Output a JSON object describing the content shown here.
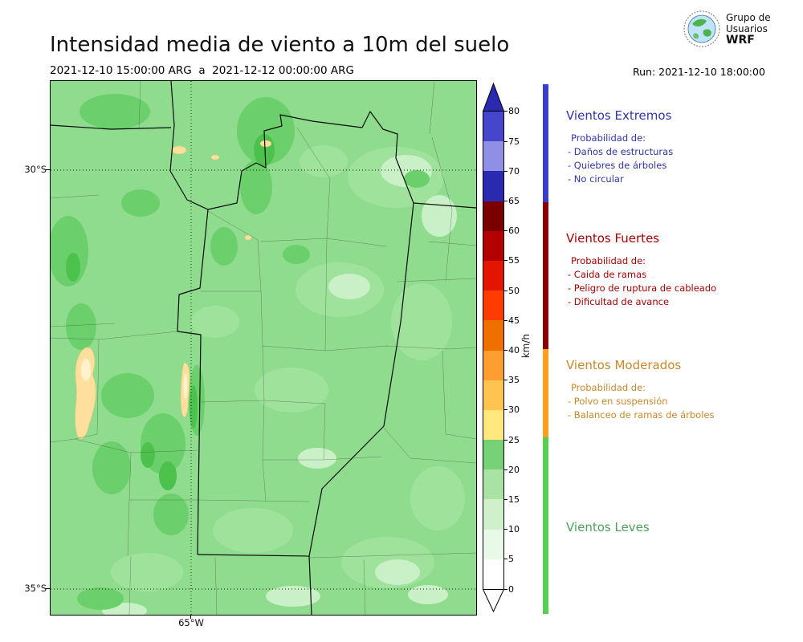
{
  "header": {
    "title": "Intensidad media de viento a 10m del suelo",
    "period": "2021-12-10 15:00:00 ARG  a  2021-12-12 00:00:00 ARG",
    "run": "Run: 2021-12-10 18:00:00",
    "logo": {
      "org_line1": "Grupo de",
      "org_line2": "Usuarios",
      "org_line3": "WRF"
    }
  },
  "map": {
    "lat_ticks": [
      "30°S",
      "35°S"
    ],
    "lon_ticks": [
      "65°W"
    ]
  },
  "colorbar": {
    "unit": "km/h",
    "ticks": [
      0,
      5,
      10,
      15,
      20,
      25,
      30,
      35,
      40,
      45,
      50,
      55,
      60,
      65,
      70,
      75,
      80
    ],
    "over_color": "#2a2ab0",
    "under_color": "#ffffff",
    "segments": [
      "#ffffff",
      "#e9f9e7",
      "#cff0ca",
      "#a9e3a3",
      "#77d277",
      "#ffe97f",
      "#ffc44f",
      "#ff9e30",
      "#ef7000",
      "#ff3c00",
      "#e31500",
      "#b30000",
      "#7a0000",
      "#2a2ab0",
      "#8f8fe6",
      "#4646cc"
    ]
  },
  "legend": {
    "sections": [
      {
        "title": "Vientos Extremos",
        "text_color": "#3333aa",
        "strip_color": "#3c3ccc",
        "heading": "Probabilidad de:",
        "items": [
          "- Daños de estructuras",
          "- Quiebres de árboles",
          "- No circular"
        ]
      },
      {
        "title": "Vientos Fuertes",
        "text_color": "#a50000",
        "strip_color": "#8b0000",
        "heading": "Probabilidad de:",
        "items": [
          "- Caida de ramas",
          "- Peligro de ruptura de cableado",
          "- Dificultad de avance"
        ]
      },
      {
        "title": "Vientos Moderados",
        "text_color": "#c8882a",
        "strip_color": "#ff9f1a",
        "heading": "Probabilidad de:",
        "items": [
          "- Polvo en suspensión",
          "- Balanceo de ramas de árboles"
        ]
      },
      {
        "title": "Vientos Leves",
        "text_color": "#4ca05c",
        "strip_color": "#55d055",
        "heading": "",
        "items": []
      }
    ]
  },
  "chart_data": {
    "type": "heatmap",
    "title": "Intensidad media de viento a 10m del suelo",
    "period_start": "2021-12-10 15:00:00 ARG",
    "period_end": "2021-12-12 00:00:00 ARG",
    "model_run": "2021-12-10 18:00:00",
    "colorbar": {
      "label": "km/h",
      "ticks": [
        0,
        5,
        10,
        15,
        20,
        25,
        30,
        35,
        40,
        45,
        50,
        55,
        60,
        65,
        70,
        75,
        80
      ],
      "extend": "both"
    },
    "axes": {
      "lat_ticks": [
        "30°S",
        "35°S"
      ],
      "lon_ticks": [
        "65°W"
      ],
      "grid": "dotted"
    },
    "dominant_range_kmh": [
      5,
      25
    ]
  }
}
